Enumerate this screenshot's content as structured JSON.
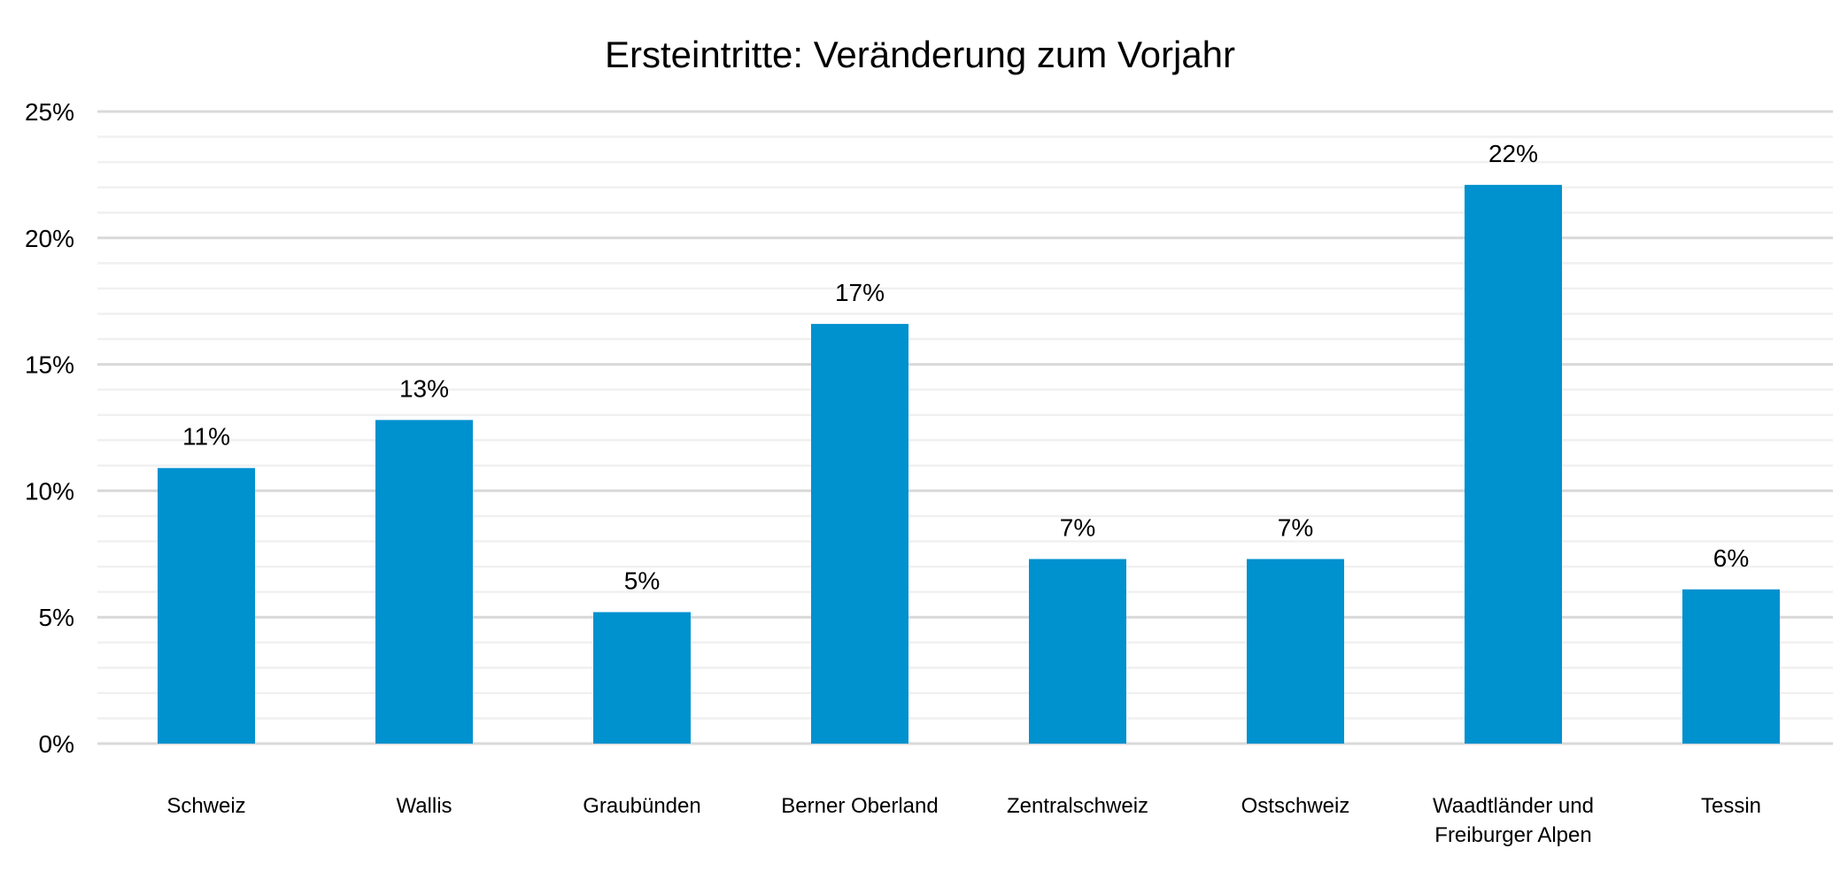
{
  "chart_data": {
    "type": "bar",
    "title": "Ersteintritte: Veränderung zum Vorjahr",
    "xlabel": "",
    "ylabel": "",
    "ylim": [
      0,
      25
    ],
    "yticks": [
      0,
      5,
      10,
      15,
      20,
      25
    ],
    "ytick_labels": [
      "0%",
      "5%",
      "10%",
      "15%",
      "20%",
      "25%"
    ],
    "minor_grid_step": 1,
    "grid": true,
    "legend": "none",
    "categories": [
      [
        "Schweiz"
      ],
      [
        "Wallis"
      ],
      [
        "Graubünden"
      ],
      [
        "Berner Oberland"
      ],
      [
        "Zentralschweiz"
      ],
      [
        "Ostschweiz"
      ],
      [
        "Waadtländer und",
        "Freiburger Alpen"
      ],
      [
        "Tessin"
      ]
    ],
    "values": [
      10.9,
      12.8,
      5.2,
      16.6,
      7.3,
      7.3,
      22.1,
      6.1
    ],
    "data_labels": [
      "11%",
      "13%",
      "5%",
      "17%",
      "7%",
      "7%",
      "22%",
      "6%"
    ],
    "colors": {
      "bar": "#0091cf",
      "major_grid": "#d9d9d9",
      "minor_grid": "#f0f0f0"
    }
  }
}
